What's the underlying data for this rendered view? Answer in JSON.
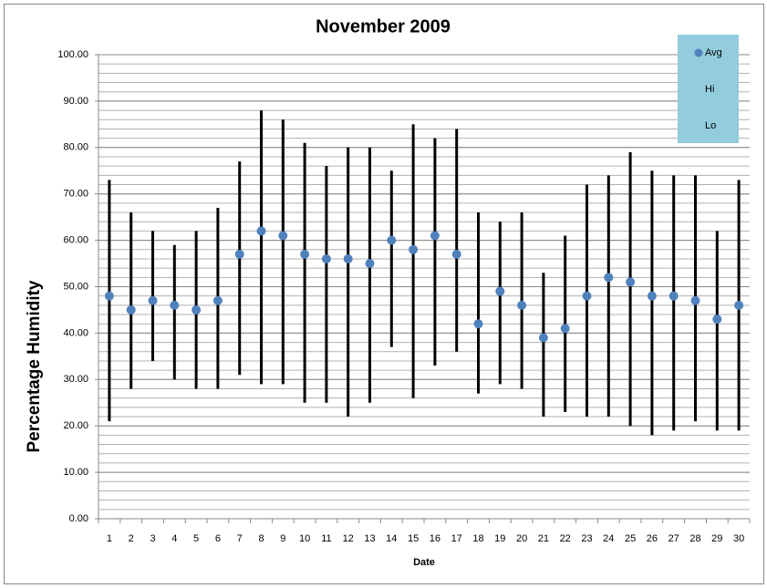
{
  "chart_data": {
    "type": "hilo",
    "title": "November 2009",
    "x_label": "Date",
    "y_label": "Percentage Humidity",
    "categories": [
      "1",
      "2",
      "3",
      "4",
      "5",
      "6",
      "7",
      "8",
      "9",
      "10",
      "11",
      "12",
      "13",
      "14",
      "15",
      "16",
      "17",
      "18",
      "19",
      "20",
      "21",
      "22",
      "23",
      "24",
      "25",
      "26",
      "27",
      "28",
      "29",
      "30"
    ],
    "series": [
      {
        "name": "Avg",
        "color": "#4f81bd",
        "values": [
          48,
          45,
          47,
          46,
          45,
          47,
          57,
          62,
          61,
          57,
          56,
          56,
          55,
          60,
          58,
          61,
          57,
          42,
          49,
          46,
          39,
          41,
          48,
          52,
          51,
          48,
          48,
          47,
          43,
          46
        ]
      },
      {
        "name": "Hi",
        "color": "#000000",
        "values": [
          73,
          66,
          62,
          59,
          62,
          67,
          77,
          88,
          86,
          81,
          76,
          80,
          80,
          75,
          85,
          82,
          84,
          66,
          64,
          66,
          53,
          61,
          72,
          74,
          79,
          75,
          74,
          74,
          62,
          73
        ]
      },
      {
        "name": "Lo",
        "color": "#000000",
        "values": [
          21,
          28,
          34,
          30,
          28,
          28,
          31,
          29,
          29,
          25,
          25,
          22,
          25,
          37,
          26,
          33,
          36,
          27,
          29,
          28,
          22,
          23,
          22,
          22,
          20,
          18,
          19,
          21,
          19,
          19
        ]
      }
    ],
    "ylim": [
      0,
      100
    ],
    "yticks": [
      {
        "value": 0,
        "label": "0.00"
      },
      {
        "value": 10,
        "label": "10.00"
      },
      {
        "value": 20,
        "label": "20.00"
      },
      {
        "value": 30,
        "label": "30.00"
      },
      {
        "value": 40,
        "label": "40.00"
      },
      {
        "value": 50,
        "label": "50.00"
      },
      {
        "value": 60,
        "label": "60.00"
      },
      {
        "value": 70,
        "label": "70.00"
      },
      {
        "value": 80,
        "label": "80.00"
      },
      {
        "value": 90,
        "label": "90.00"
      },
      {
        "value": 100,
        "label": "100.00"
      }
    ],
    "grid": true,
    "minor_grid_step": 2,
    "legend_position": "top-right",
    "legend_color": "#93cddd"
  }
}
